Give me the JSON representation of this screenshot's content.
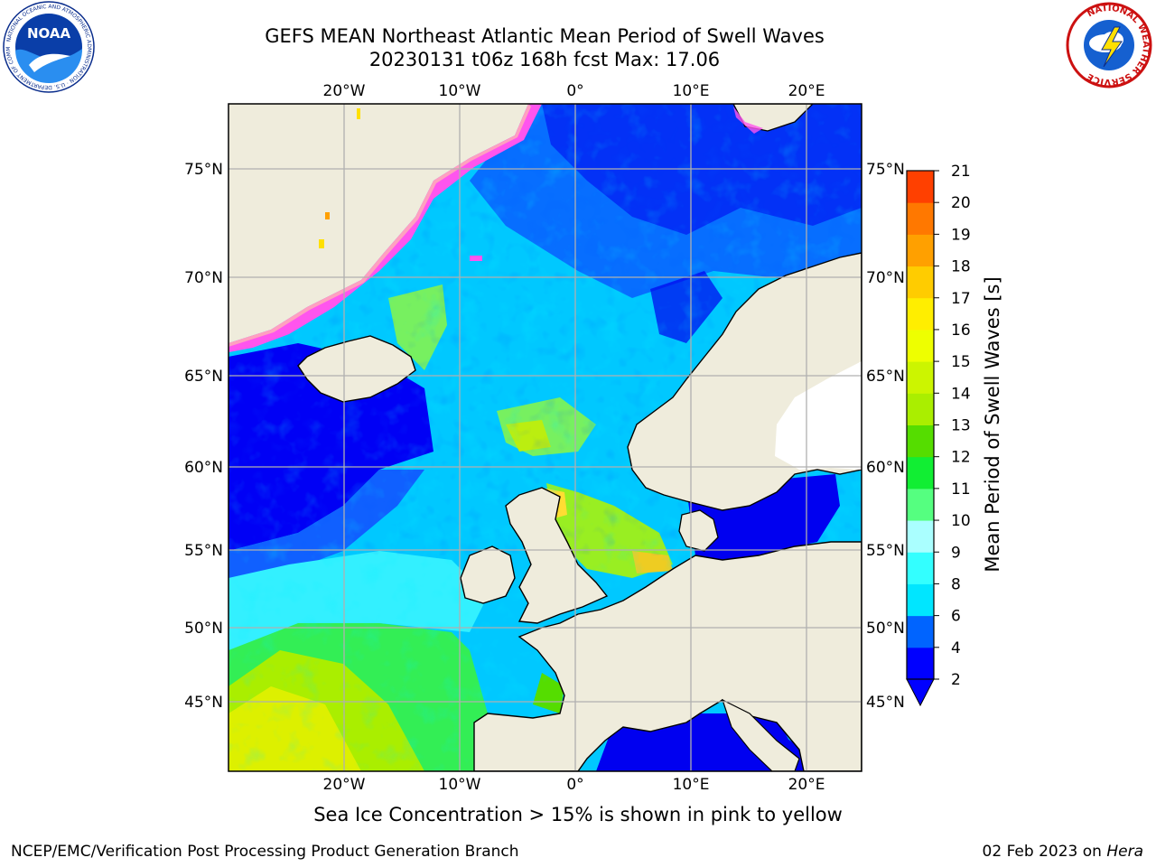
{
  "header": {
    "title_line1": "GEFS MEAN Northeast Atlantic Mean Period of Swell Waves",
    "title_line2": "20230131 t06z 168h fcst   Max: 17.06"
  },
  "logos": {
    "left": "NOAA",
    "left_ring_text": "NATIONAL OCEANIC AND ATMOSPHERIC ADMINISTRATION · U.S. DEPARTMENT OF COMMERCE",
    "right_ring_text": "NATIONAL WEATHER SERVICE"
  },
  "map": {
    "lon_labels": [
      "20°W",
      "10°W",
      "0°",
      "10°E",
      "20°E"
    ],
    "lat_labels": [
      "75°N",
      "70°N",
      "65°N",
      "60°N",
      "55°N",
      "50°N",
      "45°N"
    ],
    "land_color": "#efecdc",
    "ice_colors": [
      "#ff55ee",
      "#ffa0c0",
      "#ffe000"
    ]
  },
  "colorbar": {
    "label": "Mean Period of Swell Waves [s]",
    "ticks": [
      "2",
      "4",
      "6",
      "8",
      "9",
      "10",
      "11",
      "12",
      "13",
      "14",
      "15",
      "16",
      "17",
      "18",
      "19",
      "20",
      "21"
    ],
    "colors": [
      "#0000ff",
      "#0064ff",
      "#00e6ff",
      "#33ffff",
      "#aaffff",
      "#55ff80",
      "#11ee33",
      "#55dd00",
      "#aaee00",
      "#ccf500",
      "#eeff00",
      "#ffee00",
      "#ffcc00",
      "#ffa000",
      "#ff7800",
      "#ff4000",
      "#ff0000"
    ]
  },
  "footer": {
    "ice_note": "Sea Ice Concentration > 15% is shown in pink to yellow",
    "credit": "NCEP/EMC/Verification Post Processing Product Generation Branch",
    "date": "02 Feb 2023 on",
    "machine": "Hera"
  }
}
